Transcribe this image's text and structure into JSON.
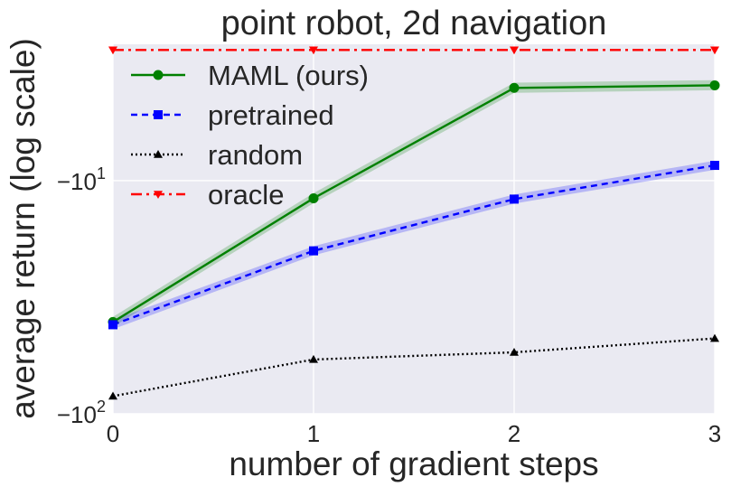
{
  "chart_data": {
    "type": "line",
    "title": "point robot, 2d navigation",
    "xlabel": "number of gradient steps",
    "ylabel": "average return (log scale)",
    "yscale": "symlog",
    "x": [
      0,
      1,
      2,
      3
    ],
    "xlim": [
      0,
      3
    ],
    "ylim": [
      -100,
      -2.6
    ],
    "x_ticks": [
      "0",
      "1",
      "2",
      "3"
    ],
    "y_ticks": [
      {
        "value": -10,
        "base": "−10",
        "exp": "1"
      },
      {
        "value": -100,
        "base": "−10",
        "exp": "2"
      }
    ],
    "grid": true,
    "legend_position": "upper-left",
    "series": [
      {
        "name": "MAML (ours)",
        "color": "#008000",
        "linestyle": "solid",
        "marker": "circle",
        "values": [
          -40.4,
          -11.9,
          -4.0,
          -3.9
        ],
        "band": 0.05
      },
      {
        "name": "pretrained",
        "color": "#0000ff",
        "linestyle": "dashed",
        "marker": "square",
        "values": [
          -41.5,
          -20.0,
          -12.0,
          -8.6
        ],
        "band": 0.045
      },
      {
        "name": "random",
        "color": "#000000",
        "linestyle": "dotted",
        "marker": "triangle-up",
        "values": [
          -84.0,
          -58.5,
          -54.5,
          -47.5
        ],
        "band": 0.0
      },
      {
        "name": "oracle",
        "color": "#ff0000",
        "linestyle": "dashdot",
        "marker": "triangle-down",
        "values": [
          -2.75,
          -2.75,
          -2.75,
          -2.75
        ],
        "band": 0.0
      }
    ]
  }
}
